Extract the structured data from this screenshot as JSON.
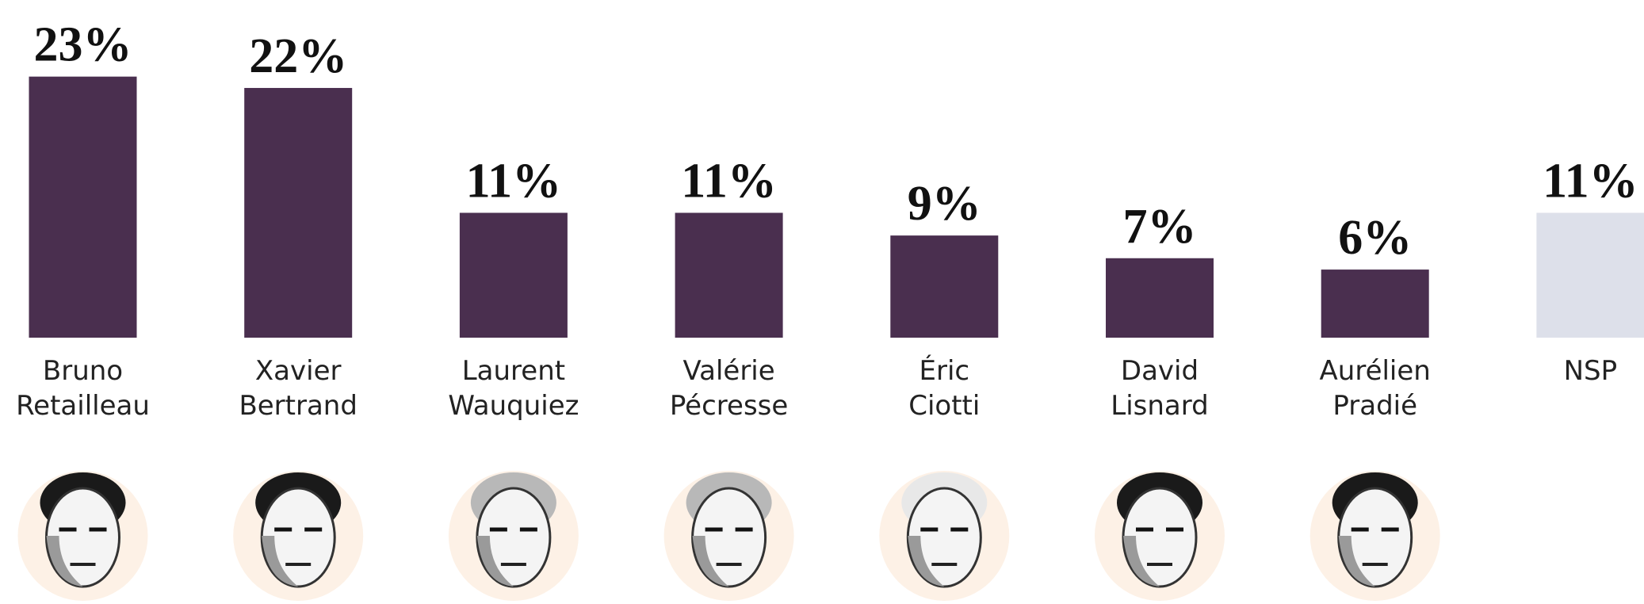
{
  "chart_data": {
    "type": "bar",
    "categories": [
      [
        "Bruno",
        "Retailleau"
      ],
      [
        "Xavier",
        "Bertrand"
      ],
      [
        "Laurent",
        "Wauquiez"
      ],
      [
        "Valérie",
        "Pécresse"
      ],
      [
        "Éric",
        "Ciotti"
      ],
      [
        "David",
        "Lisnard"
      ],
      [
        "Aurélien",
        "Pradié"
      ],
      [
        "NSP"
      ]
    ],
    "values": [
      23,
      22,
      11,
      11,
      9,
      7,
      6,
      11
    ],
    "value_labels": [
      "23%",
      "22%",
      "11%",
      "11%",
      "9%",
      "7%",
      "6%",
      "11%"
    ],
    "colors": [
      "#4a2f4f",
      "#4a2f4f",
      "#4a2f4f",
      "#4a2f4f",
      "#4a2f4f",
      "#4a2f4f",
      "#4a2f4f",
      "#dde0ea"
    ]
  }
}
